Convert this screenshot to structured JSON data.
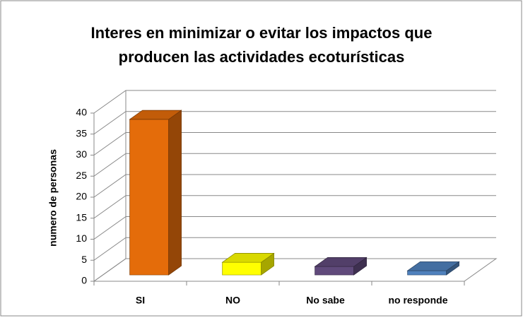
{
  "chart_data": {
    "type": "bar3d",
    "title": [
      "Interes  en minimizar o evitar los impactos que",
      "producen las actividades ecoturísticas"
    ],
    "y_label": "numero de personas",
    "categories": [
      "SI",
      "NO",
      "No sabe",
      "no responde"
    ],
    "values": [
      37,
      3,
      2,
      1
    ],
    "colors": [
      "#e46c0a",
      "#ffff00",
      "#604a7b",
      "#4f81bd"
    ],
    "ylim": [
      0,
      40
    ],
    "yticks": [
      0,
      5,
      10,
      15,
      20,
      25,
      30,
      35,
      40
    ],
    "grid": true
  }
}
